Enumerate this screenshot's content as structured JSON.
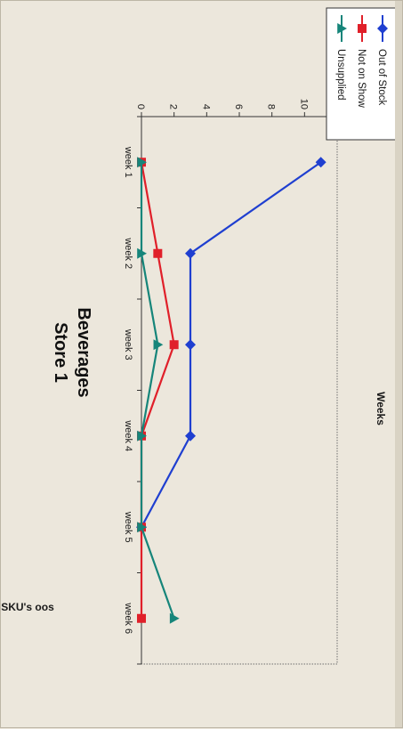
{
  "chart_data": {
    "type": "line",
    "title": "Store 1",
    "subtitle": "Beverages",
    "xlabel": "Weeks",
    "ylabel": "No of SKU's oos",
    "categories": [
      "week 1",
      "week 2",
      "week 3",
      "week 4",
      "week 5",
      "week 6"
    ],
    "ylim": [
      0,
      12
    ],
    "yticks": [
      0,
      2,
      4,
      6,
      8,
      10,
      12
    ],
    "grid": false,
    "legend_position": "top-right",
    "series": [
      {
        "name": "Out of Stock",
        "values": [
          11,
          3,
          3,
          3,
          0,
          null
        ],
        "color": "#1f3fd0",
        "marker": "diamond"
      },
      {
        "name": "Not on Show",
        "values": [
          0,
          1,
          2,
          0,
          0,
          0
        ],
        "color": "#e0202a",
        "marker": "square"
      },
      {
        "name": "Unsupplied",
        "values": [
          0,
          0,
          1,
          0,
          0,
          2
        ],
        "color": "#16857a",
        "marker": "triangle"
      }
    ]
  }
}
